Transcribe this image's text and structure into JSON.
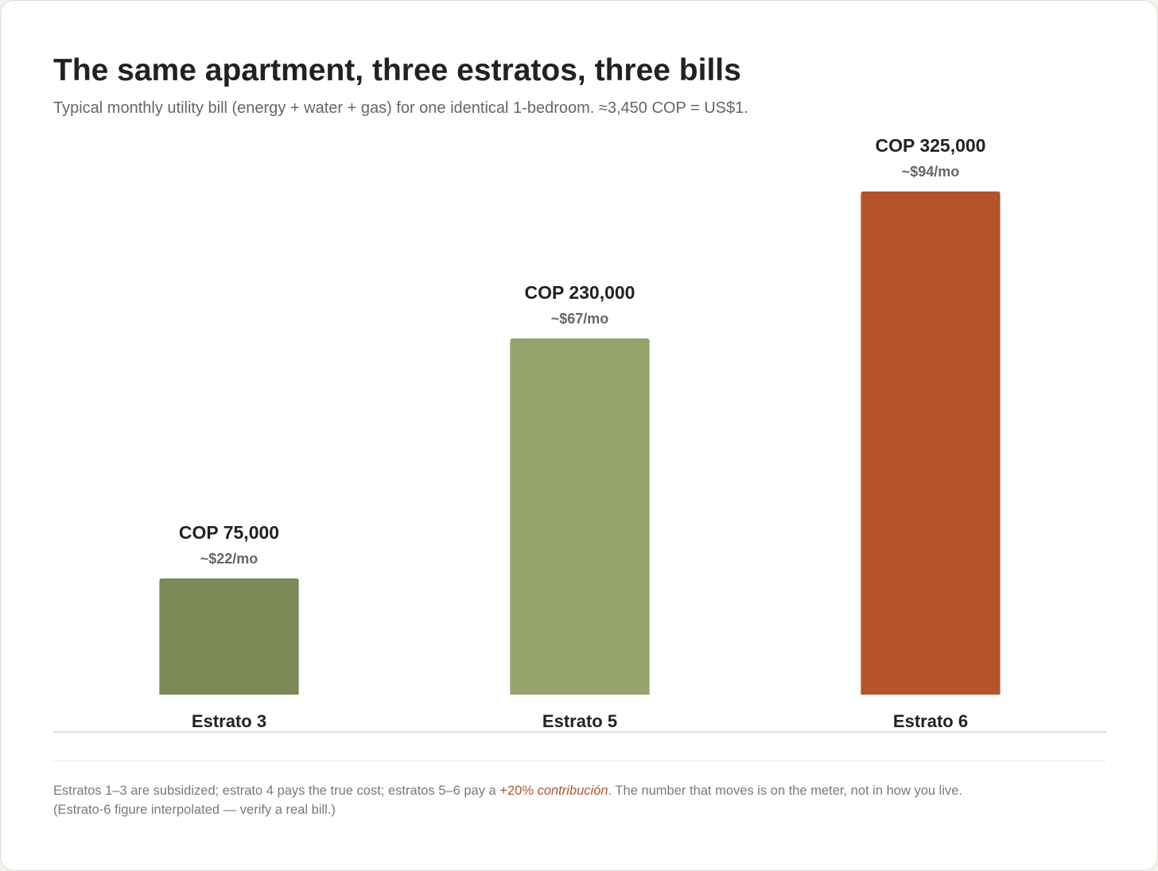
{
  "chart_data": {
    "type": "bar",
    "title": "The same apartment, three estratos, three bills",
    "subtitle": "Typical monthly utility bill (energy + water + gas) for one identical 1-bedroom. ≈3,450 COP = US$1.",
    "categories": [
      "Estrato 3",
      "Estrato 5",
      "Estrato 6"
    ],
    "values": [
      75000,
      230000,
      325000
    ],
    "value_labels": [
      "COP 75,000",
      "COP 230,000",
      "COP 325,000"
    ],
    "usd_labels": [
      "~$22/mo",
      "~$67/mo",
      "~$94/mo"
    ],
    "bar_colors": [
      "#7b8a56",
      "#96a56b",
      "#b5532b"
    ],
    "ylim": [
      0,
      325000
    ],
    "xlabel": "",
    "ylabel": "",
    "grid": false,
    "legend": "none"
  },
  "footnote": {
    "before": "Estratos 1–3 are subsidized; estrato 4 pays the true cost; estratos 5–6 pay a ",
    "highlight_plain": "+20% ",
    "highlight_italic": "contribución",
    "after": ". The number that moves is on the meter, not in how you live.",
    "line2": "(Estrato-6 figure interpolated — verify a real bill.)"
  },
  "colors": {
    "text_dark": "#222222",
    "text_muted": "#666666",
    "accent": "#b5532b",
    "baseline": "#e4e4e0"
  }
}
